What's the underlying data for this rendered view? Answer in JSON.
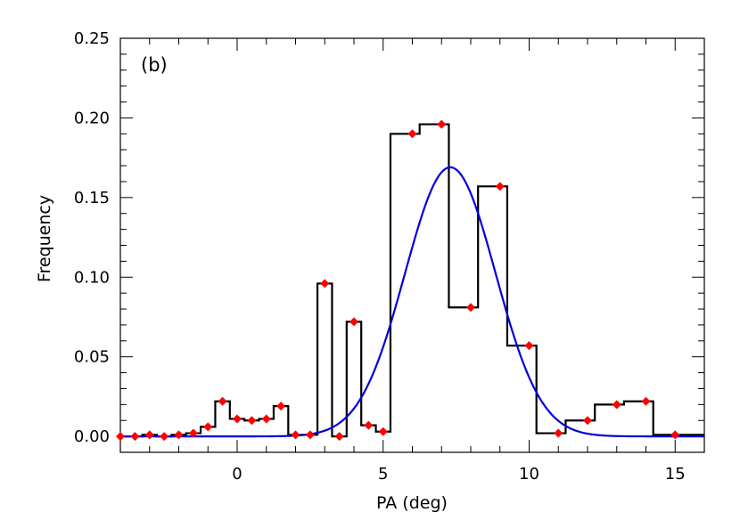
{
  "chart_data": {
    "type": "histogram",
    "panel_label": "(b)",
    "xlabel": "PA (deg)",
    "ylabel": "Frequency",
    "xlim": [
      -4,
      16
    ],
    "ylim": [
      -0.01,
      0.25
    ],
    "x_ticks": [
      0,
      5,
      10,
      15
    ],
    "x_tick_labels": [
      "0",
      "5",
      "10",
      "15"
    ],
    "y_ticks": [
      0,
      0.05,
      0.1,
      0.15,
      0.2,
      0.25
    ],
    "y_tick_labels": [
      "0.00",
      "0.05",
      "0.10",
      "0.15",
      "0.20",
      "0.25"
    ],
    "histogram": {
      "color": "#000000",
      "bin_width": 0.5,
      "centers": [
        -4,
        -3.5,
        -3,
        -2.5,
        -2,
        -1.5,
        -1,
        -0.5,
        0,
        0.5,
        1,
        1.5,
        2,
        2.5,
        3,
        3.5,
        4,
        4.5,
        5,
        5.5,
        6,
        6.5,
        7,
        7.5,
        8,
        8.5,
        9,
        9.5,
        10,
        10.5,
        11,
        11.5,
        12,
        12.5,
        13,
        13.5,
        14,
        14.5,
        15
      ],
      "values": [
        0.0,
        0.0,
        0.001,
        0.0,
        0.001,
        0.002,
        0.006,
        0.022,
        0.011,
        0.01,
        0.011,
        0.019,
        0.001,
        0.001,
        0.096,
        0.0,
        0.072,
        0.007,
        0.003,
        0.19,
        0.19,
        0.196,
        0.196,
        0.081,
        0.081,
        0.157,
        0.157,
        0.057,
        0.057,
        0.002,
        0.002,
        0.01,
        0.01,
        0.02,
        0.02,
        0.022,
        0.022,
        0.001,
        0.001
      ]
    },
    "points": {
      "color": "#ff0000",
      "x": [
        -4,
        -3.5,
        -3,
        -2.5,
        -2,
        -1.5,
        -1,
        -0.5,
        0,
        0.5,
        1,
        1.5,
        2,
        2.5,
        3,
        3.5,
        4,
        4.5,
        5,
        6,
        7,
        8,
        9,
        10,
        11,
        12,
        13,
        14,
        15
      ],
      "y": [
        0.0,
        0.0,
        0.001,
        0.0,
        0.001,
        0.002,
        0.006,
        0.022,
        0.011,
        0.01,
        0.011,
        0.019,
        0.001,
        0.001,
        0.096,
        0.0,
        0.072,
        0.007,
        0.003,
        0.19,
        0.196,
        0.081,
        0.157,
        0.057,
        0.002,
        0.01,
        0.02,
        0.022,
        0.001
      ]
    },
    "fit_curve": {
      "type": "gaussian",
      "color": "#0000dd",
      "amplitude": 0.169,
      "center": 7.3,
      "sigma": 1.55
    }
  }
}
